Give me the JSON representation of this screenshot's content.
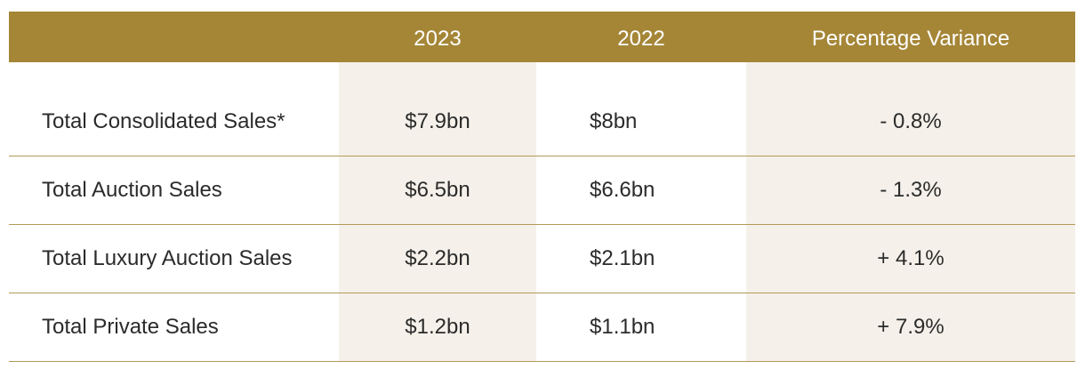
{
  "header": {
    "label_col": "",
    "col_2023": "2023",
    "col_2022": "2022",
    "col_variance": "Percentage Variance"
  },
  "rows": [
    {
      "label": "Total Consolidated Sales*",
      "v2023": "$7.9bn",
      "v2022": "$8bn",
      "variance": "- 0.8%"
    },
    {
      "label": "Total Auction Sales",
      "v2023": "$6.5bn",
      "v2022": "$6.6bn",
      "variance": "- 1.3%"
    },
    {
      "label": "Total Luxury Auction Sales",
      "v2023": "$2.2bn",
      "v2022": "$2.1bn",
      "variance": "+ 4.1%"
    },
    {
      "label": "Total Private Sales",
      "v2023": "$1.2bn",
      "v2022": "$1.1bn",
      "variance": "+ 7.9%"
    }
  ],
  "colors": {
    "header_bg": "#a58637",
    "shaded_col_bg": "#f5f1ea",
    "row_divider": "#b39a5a"
  }
}
